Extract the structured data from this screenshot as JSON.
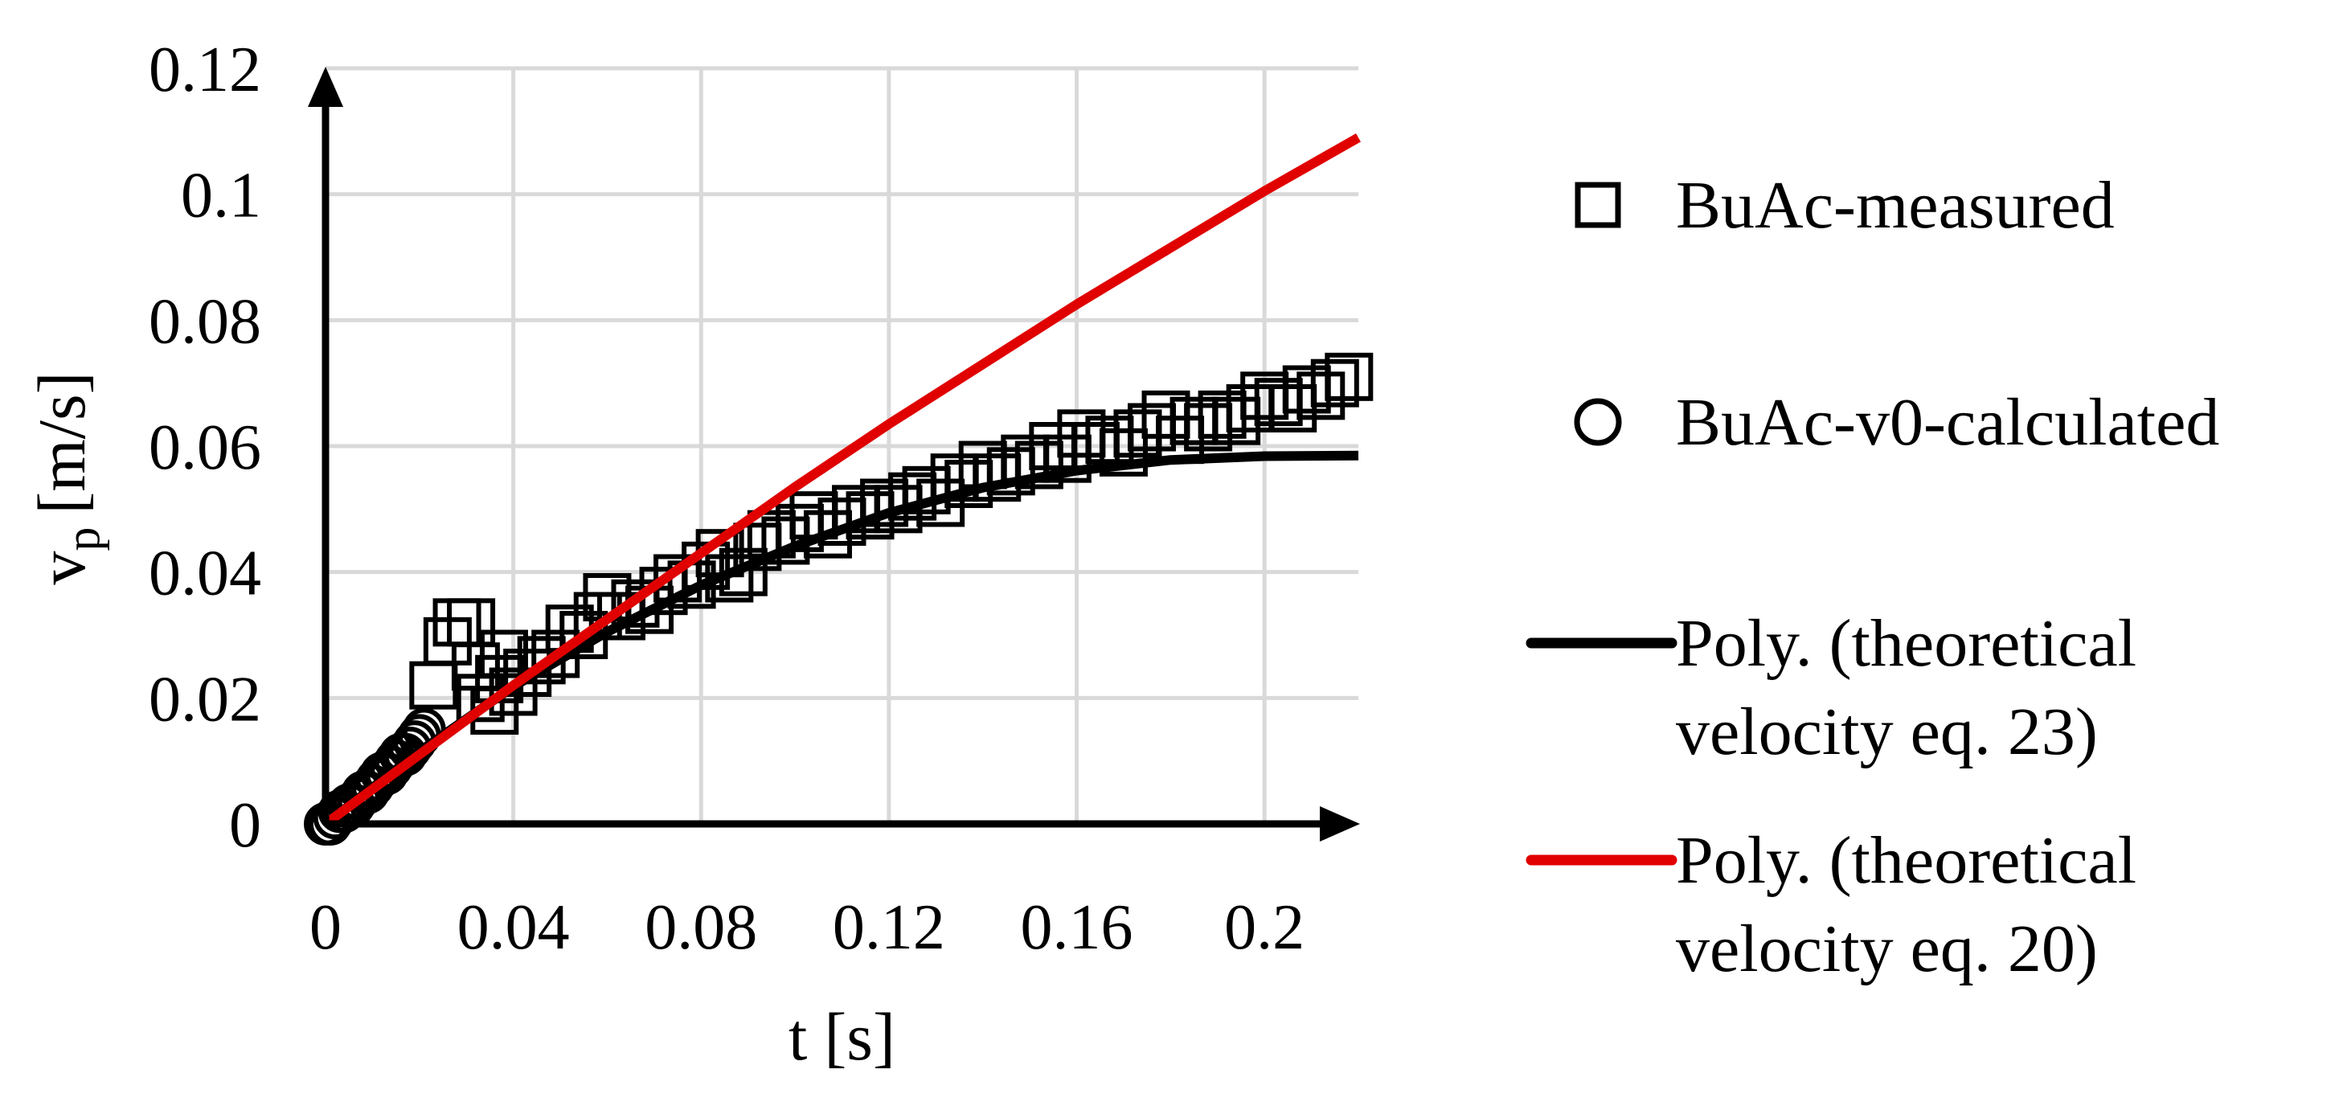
{
  "chart_data": {
    "type": "scatter",
    "xlabel": "t [s]",
    "ylabel_main": "v",
    "ylabel_sub": "p",
    "ylabel_unit": "[m/s]",
    "xlim": [
      0,
      0.22
    ],
    "ylim": [
      0,
      0.12
    ],
    "x_ticks": [
      0,
      0.04,
      0.08,
      0.12,
      0.16,
      0.2
    ],
    "x_tick_labels": [
      "0",
      "0.04",
      "0.08",
      "0.12",
      "0.16",
      "0.2"
    ],
    "y_ticks": [
      0,
      0.02,
      0.04,
      0.06,
      0.08,
      0.1,
      0.12
    ],
    "y_tick_labels": [
      "0",
      "0.02",
      "0.04",
      "0.06",
      "0.08",
      "0.1",
      "0.12"
    ],
    "grid": true,
    "legend_position": "right",
    "series": [
      {
        "name": "BuAc-measured",
        "kind": "markers",
        "marker": "square",
        "color": "#000000",
        "points": [
          [
            0.023,
            0.022
          ],
          [
            0.026,
            0.029
          ],
          [
            0.028,
            0.032
          ],
          [
            0.031,
            0.032
          ],
          [
            0.032,
            0.025
          ],
          [
            0.033,
            0.02
          ],
          [
            0.036,
            0.018
          ],
          [
            0.037,
            0.023
          ],
          [
            0.038,
            0.027
          ],
          [
            0.04,
            0.021
          ],
          [
            0.043,
            0.024
          ],
          [
            0.046,
            0.026
          ],
          [
            0.049,
            0.027
          ],
          [
            0.052,
            0.031
          ],
          [
            0.055,
            0.03
          ],
          [
            0.058,
            0.033
          ],
          [
            0.06,
            0.036
          ],
          [
            0.063,
            0.033
          ],
          [
            0.066,
            0.035
          ],
          [
            0.069,
            0.034
          ],
          [
            0.072,
            0.037
          ],
          [
            0.075,
            0.039
          ],
          [
            0.078,
            0.038
          ],
          [
            0.081,
            0.041
          ],
          [
            0.084,
            0.043
          ],
          [
            0.086,
            0.039
          ],
          [
            0.089,
            0.04
          ],
          [
            0.092,
            0.044
          ],
          [
            0.095,
            0.046
          ],
          [
            0.098,
            0.045
          ],
          [
            0.101,
            0.047
          ],
          [
            0.104,
            0.049
          ],
          [
            0.107,
            0.046
          ],
          [
            0.11,
            0.048
          ],
          [
            0.113,
            0.05
          ],
          [
            0.116,
            0.049
          ],
          [
            0.119,
            0.051
          ],
          [
            0.122,
            0.05
          ],
          [
            0.125,
            0.052
          ],
          [
            0.128,
            0.053
          ],
          [
            0.131,
            0.051
          ],
          [
            0.134,
            0.055
          ],
          [
            0.137,
            0.054
          ],
          [
            0.14,
            0.057
          ],
          [
            0.143,
            0.055
          ],
          [
            0.146,
            0.056
          ],
          [
            0.149,
            0.058
          ],
          [
            0.152,
            0.057
          ],
          [
            0.155,
            0.06
          ],
          [
            0.158,
            0.058
          ],
          [
            0.161,
            0.062
          ],
          [
            0.164,
            0.06
          ],
          [
            0.167,
            0.061
          ],
          [
            0.17,
            0.059
          ],
          [
            0.173,
            0.062
          ],
          [
            0.176,
            0.063
          ],
          [
            0.179,
            0.065
          ],
          [
            0.182,
            0.061
          ],
          [
            0.185,
            0.064
          ],
          [
            0.188,
            0.063
          ],
          [
            0.191,
            0.065
          ],
          [
            0.194,
            0.064
          ],
          [
            0.197,
            0.066
          ],
          [
            0.2,
            0.068
          ],
          [
            0.203,
            0.067
          ],
          [
            0.206,
            0.066
          ],
          [
            0.209,
            0.069
          ],
          [
            0.212,
            0.068
          ],
          [
            0.215,
            0.07
          ],
          [
            0.218,
            0.071
          ]
        ]
      },
      {
        "name": "BuAc-v0-calculated",
        "kind": "markers",
        "marker": "circle",
        "color": "#000000",
        "points": [
          [
            0.0,
            0.0
          ],
          [
            0.001,
            0.0
          ],
          [
            0.002,
            0.001
          ],
          [
            0.003,
            0.002
          ],
          [
            0.004,
            0.002
          ],
          [
            0.005,
            0.003
          ],
          [
            0.006,
            0.003
          ],
          [
            0.007,
            0.004
          ],
          [
            0.008,
            0.005
          ],
          [
            0.009,
            0.005
          ],
          [
            0.01,
            0.006
          ],
          [
            0.011,
            0.007
          ],
          [
            0.012,
            0.008
          ],
          [
            0.013,
            0.008
          ],
          [
            0.014,
            0.009
          ],
          [
            0.015,
            0.01
          ],
          [
            0.016,
            0.011
          ],
          [
            0.017,
            0.011
          ],
          [
            0.018,
            0.012
          ],
          [
            0.019,
            0.013
          ],
          [
            0.02,
            0.014
          ],
          [
            0.021,
            0.015
          ]
        ]
      },
      {
        "name": "Poly. (theoretical velocity eq. 23)",
        "kind": "line",
        "color": "#000000",
        "points": [
          [
            0.0,
            0.0
          ],
          [
            0.02,
            0.0115
          ],
          [
            0.04,
            0.0218
          ],
          [
            0.06,
            0.0305
          ],
          [
            0.08,
            0.0379
          ],
          [
            0.1,
            0.0441
          ],
          [
            0.12,
            0.0494
          ],
          [
            0.14,
            0.0534
          ],
          [
            0.16,
            0.0561
          ],
          [
            0.18,
            0.0578
          ],
          [
            0.2,
            0.0584
          ],
          [
            0.22,
            0.0585
          ]
        ]
      },
      {
        "name": "Poly. (theoretical velocity eq. 20)",
        "kind": "line",
        "color": "#e00000",
        "points": [
          [
            0.0,
            0.0
          ],
          [
            0.02,
            0.011
          ],
          [
            0.04,
            0.022
          ],
          [
            0.06,
            0.0325
          ],
          [
            0.08,
            0.043
          ],
          [
            0.1,
            0.0535
          ],
          [
            0.12,
            0.0635
          ],
          [
            0.14,
            0.073
          ],
          [
            0.16,
            0.0825
          ],
          [
            0.18,
            0.0915
          ],
          [
            0.2,
            0.1005
          ],
          [
            0.22,
            0.109
          ]
        ]
      }
    ],
    "legend": [
      {
        "marker": "square",
        "lines": [
          "BuAc-measured"
        ]
      },
      {
        "marker": "circle",
        "lines": [
          "BuAc-v0-calculated"
        ]
      },
      {
        "marker": "line",
        "color": "#000000",
        "lines": [
          "Poly. (theoretical",
          "velocity eq. 23)"
        ]
      },
      {
        "marker": "line",
        "color": "#e00000",
        "lines": [
          "Poly. (theoretical",
          "velocity eq. 20)"
        ]
      }
    ]
  }
}
